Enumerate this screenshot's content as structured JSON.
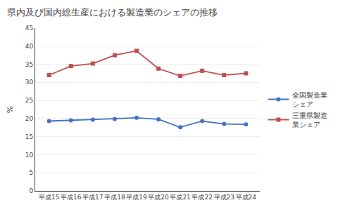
{
  "chart_data": {
    "type": "line",
    "title": "県内及び国内総生産における製造業のシェアの推移",
    "y_label": "%",
    "categories": [
      "平成15",
      "平成16",
      "平成17",
      "平成18",
      "平成19",
      "平成20",
      "平成21",
      "平成22",
      "平成23",
      "平成24"
    ],
    "series": [
      {
        "name": "全国製造業\nシェア",
        "color": "#4472c4",
        "marker": "circle",
        "values": [
          19.3,
          19.5,
          19.7,
          19.9,
          20.2,
          19.8,
          17.6,
          19.3,
          18.5,
          18.4
        ]
      },
      {
        "name": "三重県製造\n業シェア",
        "color": "#c0504d",
        "marker": "square",
        "values": [
          32.0,
          34.5,
          35.2,
          37.5,
          38.7,
          33.8,
          31.8,
          33.2,
          32.0,
          32.5
        ]
      }
    ],
    "ylim": [
      0,
      45
    ],
    "yticks": [
      0,
      5,
      10,
      15,
      20,
      25,
      30,
      35,
      40,
      45
    ],
    "grid": "y",
    "legend": "right"
  }
}
